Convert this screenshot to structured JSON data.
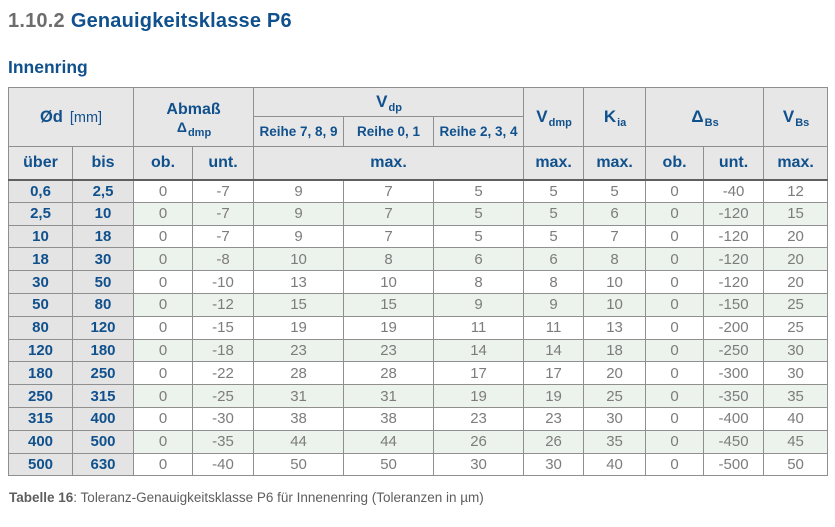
{
  "page": {
    "section_number": "1.10.2",
    "section_title": "Genauigkeitsklasse P6",
    "subtitle": "Innenring"
  },
  "colors": {
    "accent_blue": "#10518d",
    "title_gray": "#6d6d6d",
    "header_bg": "#e7e7e7",
    "idcell_bg": "#e4e4e4",
    "row_green": "#ecf3ec",
    "data_gray": "#7c7c7c",
    "caption_gray": "#5e5e5e"
  },
  "table": {
    "header": {
      "diameter_main": "Ød",
      "diameter_unit": "[mm]",
      "abmass_line1": "Abmaß",
      "abmass_sym": "Δ",
      "abmass_sub": "dmp",
      "vdp_main": "V",
      "vdp_sub": "dp",
      "reihe_789": "Reihe 7, 8, 9",
      "reihe_01": "Reihe 0, 1",
      "reihe_234": "Reihe 2, 3, 4",
      "vdmp_main": "V",
      "vdmp_sub": "dmp",
      "kia_main": "K",
      "kia_sub": "ia",
      "dbs_sym": "Δ",
      "dbs_sub": "Bs",
      "vbs_main": "V",
      "vbs_sub": "Bs",
      "q_ueber": "über",
      "q_bis": "bis",
      "q_ob": "ob.",
      "q_unt": "unt.",
      "q_max": "max."
    },
    "rows": [
      [
        "0,6",
        "2,5",
        "0",
        "-7",
        "9",
        "7",
        "5",
        "5",
        "5",
        "0",
        "-40",
        "12"
      ],
      [
        "2,5",
        "10",
        "0",
        "-7",
        "9",
        "7",
        "5",
        "5",
        "6",
        "0",
        "-120",
        "15"
      ],
      [
        "10",
        "18",
        "0",
        "-7",
        "9",
        "7",
        "5",
        "5",
        "7",
        "0",
        "-120",
        "20"
      ],
      [
        "18",
        "30",
        "0",
        "-8",
        "10",
        "8",
        "6",
        "6",
        "8",
        "0",
        "-120",
        "20"
      ],
      [
        "30",
        "50",
        "0",
        "-10",
        "13",
        "10",
        "8",
        "8",
        "10",
        "0",
        "-120",
        "20"
      ],
      [
        "50",
        "80",
        "0",
        "-12",
        "15",
        "15",
        "9",
        "9",
        "10",
        "0",
        "-150",
        "25"
      ],
      [
        "80",
        "120",
        "0",
        "-15",
        "19",
        "19",
        "11",
        "11",
        "13",
        "0",
        "-200",
        "25"
      ],
      [
        "120",
        "180",
        "0",
        "-18",
        "23",
        "23",
        "14",
        "14",
        "18",
        "0",
        "-250",
        "30"
      ],
      [
        "180",
        "250",
        "0",
        "-22",
        "28",
        "28",
        "17",
        "17",
        "20",
        "0",
        "-300",
        "30"
      ],
      [
        "250",
        "315",
        "0",
        "-25",
        "31",
        "31",
        "19",
        "19",
        "25",
        "0",
        "-350",
        "35"
      ],
      [
        "315",
        "400",
        "0",
        "-30",
        "38",
        "38",
        "23",
        "23",
        "30",
        "0",
        "-400",
        "40"
      ],
      [
        "400",
        "500",
        "0",
        "-35",
        "44",
        "44",
        "26",
        "26",
        "35",
        "0",
        "-450",
        "45"
      ],
      [
        "500",
        "630",
        "0",
        "-40",
        "50",
        "50",
        "30",
        "30",
        "40",
        "0",
        "-500",
        "50"
      ]
    ]
  },
  "caption": {
    "label": "Tabelle 16",
    "text": ": Toleranz-Genauigkeitsklasse P6 für Innenenring (Toleranzen in µm)"
  }
}
